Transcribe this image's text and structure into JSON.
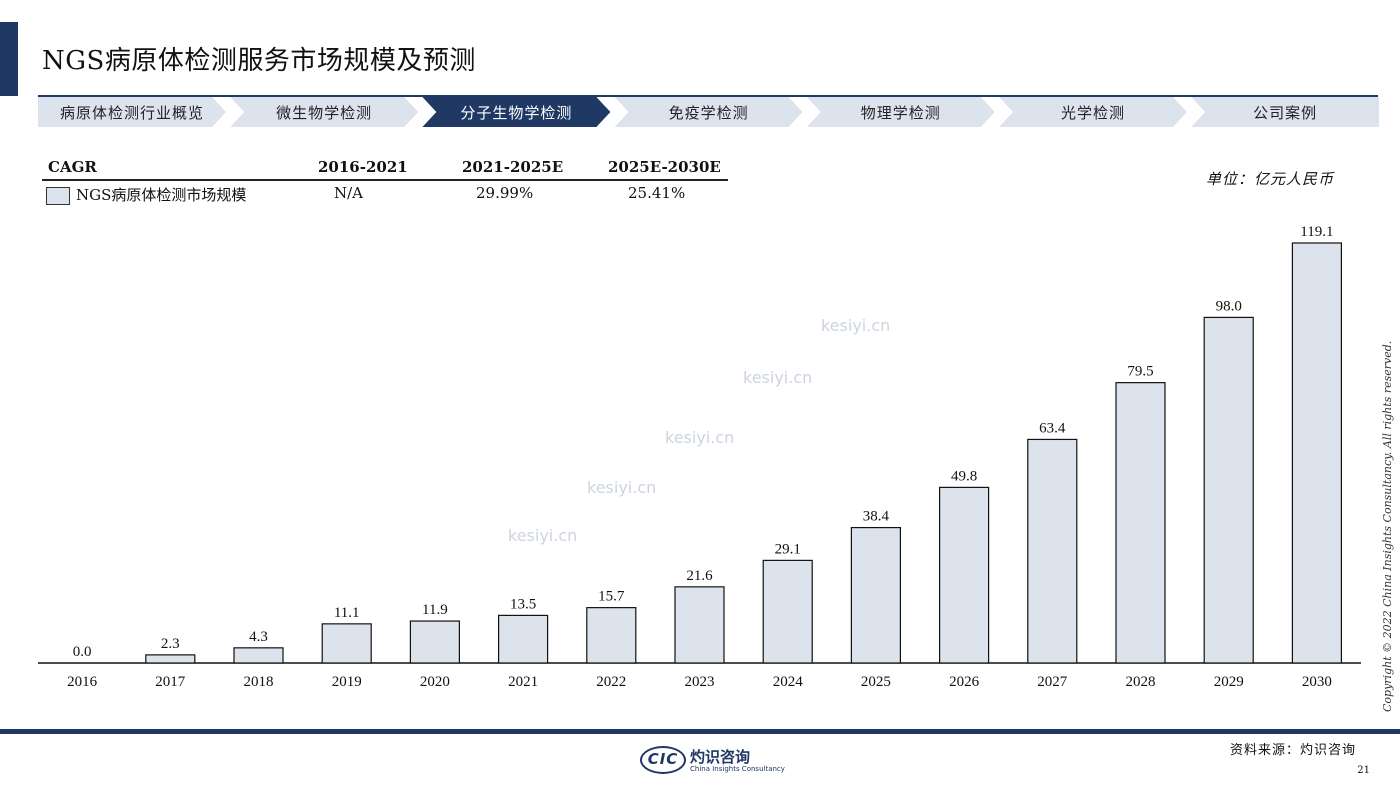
{
  "title": "NGS病原体检测服务市场规模及预测",
  "nav": {
    "items": [
      {
        "label": "病原体检测行业概览",
        "active": false
      },
      {
        "label": "微生物学检测",
        "active": false
      },
      {
        "label": "分子生物学检测",
        "active": true
      },
      {
        "label": "免疫学检测",
        "active": false
      },
      {
        "label": "物理学检测",
        "active": false
      },
      {
        "label": "光学检测",
        "active": false
      },
      {
        "label": "公司案例",
        "active": false
      }
    ]
  },
  "cagr_table": {
    "header": [
      "CAGR",
      "2016-2021",
      "2021-2025E",
      "2025E-2030E"
    ],
    "row": {
      "name": "NGS病原体检测市场规模",
      "values": [
        "N/A",
        "29.99%",
        "25.41%"
      ]
    }
  },
  "unit": "单位：亿元人民币",
  "copyright": "Copyright © 2022 China Insights Consultancy. All rights reserved.",
  "source": "资料来源：灼识咨询",
  "page_number": "21",
  "logo": {
    "mark": "CIC",
    "name": "灼识咨询",
    "sub": "China Insights Consultancy"
  },
  "watermark": "kesiyi.cn",
  "colors": {
    "accent": "#1f3864",
    "bar_fill": "#dde3ec",
    "nav_inactive": "#dde3ec"
  },
  "chart_data": {
    "type": "bar",
    "categories": [
      "2016",
      "2017",
      "2018",
      "2019",
      "2020",
      "2021",
      "2022",
      "2023",
      "2024",
      "2025",
      "2026",
      "2027",
      "2028",
      "2029",
      "2030"
    ],
    "series": [
      {
        "name": "NGS病原体检测市场规模",
        "values": [
          0.0,
          2.3,
          4.3,
          11.1,
          11.9,
          13.5,
          15.7,
          21.6,
          29.1,
          38.4,
          49.8,
          63.4,
          79.5,
          98.0,
          119.1
        ]
      }
    ],
    "value_labels": [
      "0.0",
      "2.3",
      "4.3",
      "11.1",
      "11.9",
      "13.5",
      "15.7",
      "21.6",
      "29.1",
      "38.4",
      "49.8",
      "63.4",
      "79.5",
      "98.0",
      "119.1"
    ],
    "ylim": [
      0,
      119.1
    ],
    "grid": false,
    "legend": "top-left"
  }
}
